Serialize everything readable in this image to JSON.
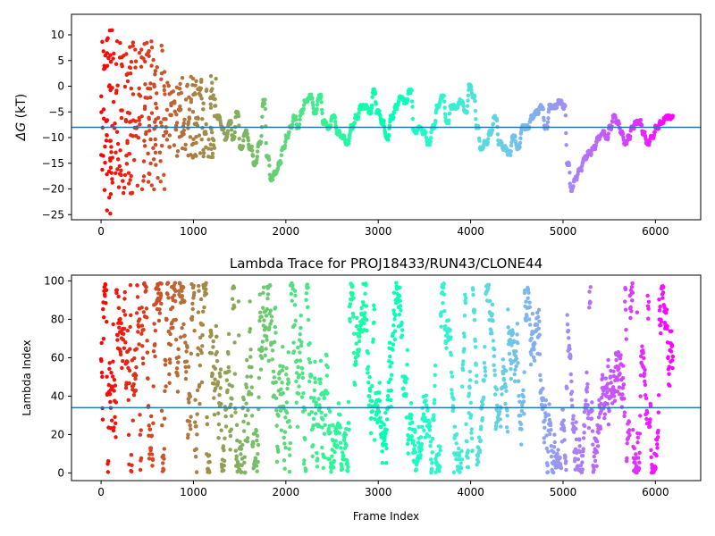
{
  "chart_data": [
    {
      "type": "scatter",
      "title": "",
      "xlabel": "",
      "ylabel": "ΔG (kT)",
      "ylabel_symbol": "ΔG",
      "ylabel_unit": "(kT)",
      "xlim": [
        -320,
        6490
      ],
      "ylim": [
        -26,
        14
      ],
      "xticks": [
        0,
        1000,
        2000,
        3000,
        4000,
        5000,
        6000
      ],
      "yticks": [
        -25,
        -20,
        -15,
        -10,
        -5,
        0,
        5,
        10
      ],
      "hline": -8,
      "hline_color": "#1f77b4",
      "colormap": "rainbow",
      "grid": false,
      "legend": "none",
      "segments": [
        {
          "x0": 0,
          "x1": 150,
          "ymin": -25,
          "ymax": 11,
          "mode": "scatter",
          "n": 60
        },
        {
          "x0": 150,
          "x1": 700,
          "ymin": -21,
          "ymax": 9,
          "mode": "scatter",
          "n": 170
        },
        {
          "x0": 700,
          "x1": 1250,
          "ymin": -14,
          "ymax": 2,
          "mode": "scatter",
          "n": 150
        }
      ],
      "walk": [
        [
          1250,
          -6
        ],
        [
          1300,
          -8
        ],
        [
          1340,
          -10
        ],
        [
          1380,
          -7
        ],
        [
          1420,
          -10
        ],
        [
          1460,
          -5
        ],
        [
          1500,
          -12
        ],
        [
          1550,
          -9
        ],
        [
          1600,
          -12
        ],
        [
          1650,
          -15
        ],
        [
          1700,
          -11
        ],
        [
          1750,
          -3
        ],
        [
          1790,
          -14
        ],
        [
          1830,
          -18
        ],
        [
          1870,
          -17
        ],
        [
          1920,
          -15
        ],
        [
          1960,
          -12
        ],
        [
          2000,
          -10
        ],
        [
          2040,
          -8
        ],
        [
          2080,
          -6
        ],
        [
          2120,
          -8
        ],
        [
          2160,
          -5
        ],
        [
          2200,
          -3
        ],
        [
          2250,
          -2
        ],
        [
          2300,
          -5
        ],
        [
          2350,
          -2
        ],
        [
          2400,
          -7
        ],
        [
          2450,
          -8
        ],
        [
          2500,
          -6
        ],
        [
          2550,
          -9
        ],
        [
          2600,
          -10
        ],
        [
          2650,
          -11
        ],
        [
          2700,
          -8
        ],
        [
          2750,
          -6
        ],
        [
          2800,
          -4
        ],
        [
          2850,
          -4
        ],
        [
          2900,
          -5
        ],
        [
          2940,
          -1
        ],
        [
          2980,
          -5
        ],
        [
          3030,
          -7
        ],
        [
          3080,
          -10
        ],
        [
          3130,
          -6
        ],
        [
          3180,
          -4
        ],
        [
          3230,
          -2
        ],
        [
          3280,
          -3
        ],
        [
          3330,
          -1
        ],
        [
          3380,
          -9
        ],
        [
          3430,
          -8
        ],
        [
          3480,
          -9
        ],
        [
          3530,
          -11
        ],
        [
          3580,
          -8
        ],
        [
          3630,
          -4
        ],
        [
          3680,
          -2
        ],
        [
          3730,
          -7
        ],
        [
          3780,
          -4
        ],
        [
          3830,
          -4
        ],
        [
          3880,
          -3
        ],
        [
          3930,
          -5
        ],
        [
          3980,
          0
        ],
        [
          4020,
          -2
        ],
        [
          4060,
          -8
        ],
        [
          4100,
          -12
        ],
        [
          4150,
          -11
        ],
        [
          4200,
          -9
        ],
        [
          4250,
          -6
        ],
        [
          4300,
          -11
        ],
        [
          4350,
          -12
        ],
        [
          4400,
          -13
        ],
        [
          4450,
          -10
        ],
        [
          4500,
          -12
        ],
        [
          4550,
          -8
        ],
        [
          4600,
          -8
        ],
        [
          4650,
          -6
        ],
        [
          4700,
          -5
        ],
        [
          4750,
          -4
        ],
        [
          4800,
          -8
        ],
        [
          4850,
          -4
        ],
        [
          4900,
          -4
        ],
        [
          4950,
          -3
        ],
        [
          5000,
          -4
        ],
        [
          5040,
          -15
        ],
        [
          5080,
          -20
        ],
        [
          5120,
          -18
        ],
        [
          5170,
          -16
        ],
        [
          5220,
          -14
        ],
        [
          5270,
          -13
        ],
        [
          5320,
          -12
        ],
        [
          5370,
          -10
        ],
        [
          5420,
          -9
        ],
        [
          5460,
          -10
        ],
        [
          5500,
          -8
        ],
        [
          5540,
          -6
        ],
        [
          5580,
          -7
        ],
        [
          5620,
          -9
        ],
        [
          5660,
          -11
        ],
        [
          5700,
          -10
        ],
        [
          5740,
          -8
        ],
        [
          5780,
          -7
        ],
        [
          5820,
          -7
        ],
        [
          5860,
          -9
        ],
        [
          5900,
          -11
        ],
        [
          5950,
          -10
        ],
        [
          6000,
          -8
        ],
        [
          6050,
          -7
        ],
        [
          6100,
          -6
        ],
        [
          6190,
          -6
        ]
      ]
    },
    {
      "type": "scatter",
      "title": "Lambda Trace for PROJ18433/RUN43/CLONE44",
      "xlabel": "Frame Index",
      "ylabel": "Lambda Index",
      "xlim": [
        -320,
        6490
      ],
      "ylim": [
        -4,
        103
      ],
      "xticks": [
        0,
        1000,
        2000,
        3000,
        4000,
        5000,
        6000
      ],
      "yticks": [
        0,
        20,
        40,
        60,
        80,
        100
      ],
      "hline": 34,
      "hline_color": "#1f77b4",
      "colormap": "rainbow",
      "grid": false,
      "legend": "none",
      "x_range": [
        0,
        6190
      ],
      "y_range": [
        0,
        99
      ],
      "n_points": 6190
    }
  ]
}
